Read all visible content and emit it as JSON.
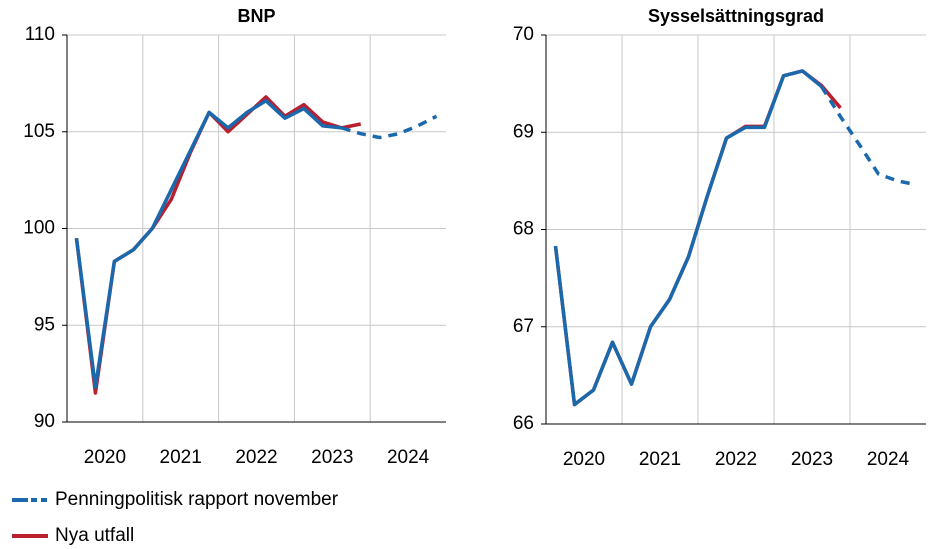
{
  "chart_data": [
    {
      "type": "line",
      "title": "BNP",
      "x": [
        2020.125,
        2020.375,
        2020.625,
        2020.875,
        2021.125,
        2021.375,
        2021.625,
        2021.875,
        2022.125,
        2022.375,
        2022.625,
        2022.875,
        2023.125,
        2023.375,
        2023.625,
        2023.875,
        2024.125,
        2024.375,
        2024.625,
        2024.875
      ],
      "xlim": [
        2020,
        2025
      ],
      "xticks": [
        {
          "value": 2020.5,
          "label": "2020"
        },
        {
          "value": 2021.5,
          "label": "2021"
        },
        {
          "value": 2022.5,
          "label": "2022"
        },
        {
          "value": 2023.5,
          "label": "2023"
        },
        {
          "value": 2024.5,
          "label": "2024"
        }
      ],
      "xgrid": [
        2021,
        2022,
        2023,
        2024
      ],
      "ylim": [
        90,
        110
      ],
      "yticks": [
        90,
        95,
        100,
        105,
        110
      ],
      "grid": true,
      "series": [
        {
          "name": "Penningpolitisk rapport november",
          "color": "#1a69ad",
          "values": [
            99.5,
            91.8,
            98.3,
            98.9,
            100.0,
            102.0,
            104.0,
            106.0,
            105.2,
            106.0,
            106.6,
            105.7,
            106.2,
            105.3,
            105.2,
            null,
            null,
            null,
            null,
            null
          ],
          "forecast_values": [
            null,
            null,
            null,
            null,
            null,
            null,
            null,
            null,
            null,
            null,
            null,
            null,
            null,
            null,
            105.2,
            104.9,
            104.7,
            104.9,
            105.3,
            105.8
          ]
        },
        {
          "name": "Nya utfall",
          "color": "#b81f2f",
          "values": [
            99.5,
            91.5,
            98.3,
            98.9,
            100.0,
            101.5,
            103.9,
            106.0,
            105.0,
            105.9,
            106.8,
            105.8,
            106.4,
            105.5,
            105.2,
            105.4,
            null,
            null,
            null,
            null
          ]
        }
      ]
    },
    {
      "type": "line",
      "title": "Sysselsättningsgrad",
      "x": [
        2020.125,
        2020.375,
        2020.625,
        2020.875,
        2021.125,
        2021.375,
        2021.625,
        2021.875,
        2022.125,
        2022.375,
        2022.625,
        2022.875,
        2023.125,
        2023.375,
        2023.625,
        2023.875,
        2024.125,
        2024.375,
        2024.625,
        2024.875
      ],
      "xlim": [
        2020,
        2025
      ],
      "xticks": [
        {
          "value": 2020.5,
          "label": "2020"
        },
        {
          "value": 2021.5,
          "label": "2021"
        },
        {
          "value": 2022.5,
          "label": "2022"
        },
        {
          "value": 2023.5,
          "label": "2023"
        },
        {
          "value": 2024.5,
          "label": "2024"
        }
      ],
      "xgrid": [
        2021,
        2022,
        2023,
        2024
      ],
      "ylim": [
        66,
        70
      ],
      "yticks": [
        66,
        67,
        68,
        69,
        70
      ],
      "grid": true,
      "series": [
        {
          "color": "#1a69ad",
          "values": [
            67.83,
            66.2,
            66.35,
            66.84,
            66.41,
            67.0,
            67.28,
            67.72,
            68.35,
            68.94,
            69.05,
            69.05,
            69.58,
            69.63,
            69.47,
            null,
            null,
            null,
            null,
            null
          ],
          "forecast_values": [
            null,
            null,
            null,
            null,
            null,
            null,
            null,
            null,
            null,
            null,
            null,
            null,
            null,
            null,
            69.47,
            69.16,
            68.87,
            68.57,
            68.5,
            68.46
          ]
        },
        {
          "color": "#b81f2f",
          "values": [
            67.83,
            66.2,
            66.35,
            66.84,
            66.41,
            67.0,
            67.28,
            67.72,
            68.35,
            68.94,
            69.06,
            69.06,
            69.58,
            69.63,
            69.48,
            69.25,
            null,
            null,
            null,
            null
          ]
        }
      ]
    }
  ]
}
